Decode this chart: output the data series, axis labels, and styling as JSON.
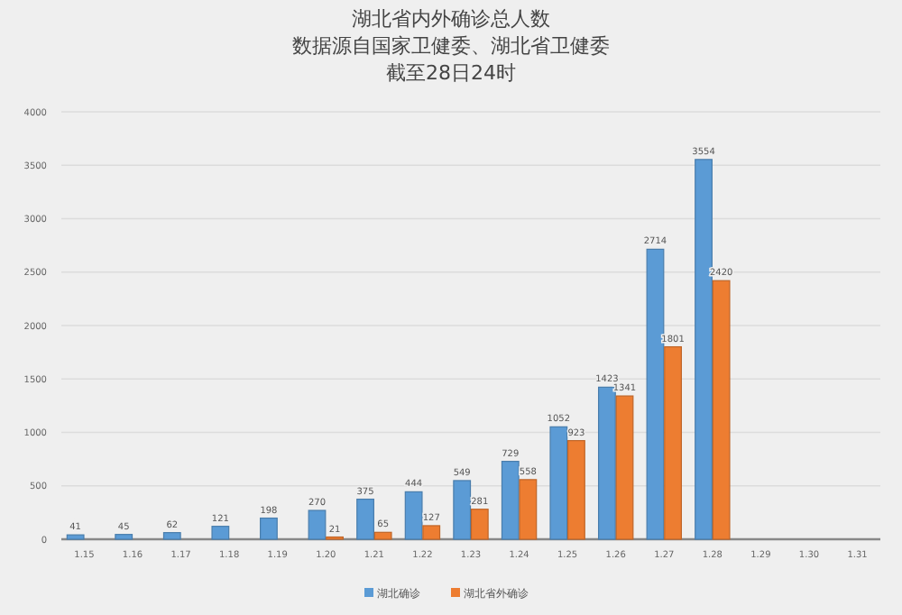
{
  "chart_data": {
    "type": "bar",
    "title": "湖北省内外确诊总人数",
    "subtitle": "数据源自国家卫健委、湖北省卫健委",
    "annotations": [
      "截至28日24时"
    ],
    "categories": [
      "1.15",
      "1.16",
      "1.17",
      "1.18",
      "1.19",
      "1.20",
      "1.21",
      "1.22",
      "1.23",
      "1.24",
      "1.25",
      "1.26",
      "1.27",
      "1.28",
      "1.29",
      "1.30",
      "1.31"
    ],
    "series": [
      {
        "name": "湖北确诊",
        "color": "#5b9bd5",
        "values": [
          41,
          45,
          62,
          121,
          198,
          270,
          375,
          444,
          549,
          729,
          1052,
          1423,
          2714,
          3554,
          null,
          null,
          null
        ]
      },
      {
        "name": "湖北省外确诊",
        "color": "#ed7d31",
        "values": [
          null,
          null,
          null,
          null,
          null,
          21,
          65,
          127,
          281,
          558,
          923,
          1341,
          1801,
          2420,
          null,
          null,
          null
        ]
      }
    ],
    "ylim": [
      0,
      4000
    ],
    "yticks": [
      0,
      500,
      1000,
      1500,
      2000,
      2500,
      3000,
      3500,
      4000
    ],
    "grid": "y",
    "legend": "bottom",
    "data_labels": true
  }
}
